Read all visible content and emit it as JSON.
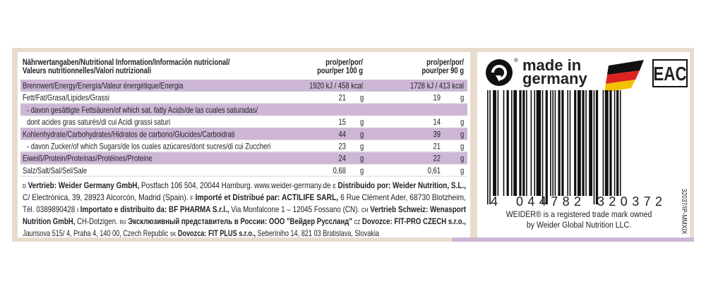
{
  "nutrition": {
    "header": {
      "title_lines": [
        "Nährwertangaben/Nutritional Information/Información nutricional/",
        "Valeurs nutritionnelles/Valori nutrizionali"
      ],
      "col1": [
        "pro/per/por/",
        "pour/per 100 g"
      ],
      "col2": [
        "pro/per/por/",
        "pour/per 90 g"
      ]
    },
    "rows": [
      {
        "label": "Brennwert/Energy/Energía/Valeur énergétique/Energia",
        "v1": "1920 kJ / 458 kcal",
        "v2": "1728 kJ / 413 kcal",
        "highlight": true
      },
      {
        "label": "Fett/Fat/Grasa/Lipides/Grassi",
        "v1": "21",
        "u1": "g",
        "v2": "19",
        "u2": "g",
        "highlight": false
      },
      {
        "label": "- davon gesättigte Fettsäuren/of which sat. fatty Acids/de las cuales saturadas/",
        "highlight": true,
        "indent": true
      },
      {
        "label": "dont acides gras saturés/di cui Acidi grassi saturi",
        "v1": "15",
        "u1": "g",
        "v2": "14",
        "u2": "g",
        "highlight": false,
        "indent": true
      },
      {
        "label": "Kohlenhydrate/Carbohydrates/Hidratos de carbono/Glucides/Carboidrati",
        "v1": "44",
        "u1": "g",
        "v2": "39",
        "u2": "g",
        "highlight": true
      },
      {
        "label": "- davon Zucker/of which Sugars/de los cuales azúcares/dont sucres/di cui Zuccheri",
        "v1": "23",
        "u1": "g",
        "v2": "21",
        "u2": "g",
        "highlight": false,
        "indent": true
      },
      {
        "label": "Eiweiß/Protein/Proteínas/Protéines/Proteine",
        "v1": "24",
        "u1": "g",
        "v2": "22",
        "u2": "g",
        "highlight": true
      },
      {
        "label": "Salz/Salt/Sal/Sel/Sale",
        "v1": "0,68",
        "u1": "g",
        "v2": "0,61",
        "u2": "g",
        "highlight": false
      }
    ]
  },
  "footer": {
    "lines": [
      [
        {
          "text": "D",
          "style": "icon"
        },
        {
          "text": " Vertrieb: Weider Germany GmbH,",
          "style": "bold"
        },
        {
          "text": " Postfach 106 504, 20044 Hamburg. www.weider-germany.de ",
          "style": "normal"
        },
        {
          "text": "E",
          "style": "icon"
        },
        {
          "text": " Distribuido por: Weider Nutrition, S.L.,",
          "style": "bold"
        }
      ],
      [
        {
          "text": "C/ Electrónica, 39, 28923 Alcorcón, Madrid (Spain). ",
          "style": "normal"
        },
        {
          "text": "F",
          "style": "icon"
        },
        {
          "text": " Importé et Distribué par: ACTILIFE SARL,",
          "style": "bold"
        },
        {
          "text": " 6 Rue Clément Ader, 68730 Blotzheim,",
          "style": "normal"
        }
      ],
      [
        {
          "text": "Tél. 0389890428 ",
          "style": "normal"
        },
        {
          "text": "I",
          "style": "icon"
        },
        {
          "text": " Importato e distribuito da: BF PHARMA S.r.l.,",
          "style": "bold"
        },
        {
          "text": " Via Monfalcone 1 – 12045 Fossano (CN). ",
          "style": "normal"
        },
        {
          "text": "CH",
          "style": "icon"
        },
        {
          "text": " Vertrieb Schweiz: Wenasport",
          "style": "bold"
        }
      ],
      [
        {
          "text": "Nutrition GmbH,",
          "style": "bold"
        },
        {
          "text": " CH-Dotzigen. ",
          "style": "normal"
        },
        {
          "text": "RU",
          "style": "icon"
        },
        {
          "text": " Эксклюзивный представитель в России: ООО \"Вейдер Руссланд\" ",
          "style": "bold"
        },
        {
          "text": "CZ",
          "style": "icon"
        },
        {
          "text": " Dovozce: FIT-PRO CZECH s.r.o.,",
          "style": "bold"
        }
      ],
      [
        {
          "text": "Jaurisova 515/ 4, Praha 4, 140 00, Czech Republic ",
          "style": "normal"
        },
        {
          "text": "SK",
          "style": "icon"
        },
        {
          "text": " Dovozca: FIT PLUS s.r.o.,",
          "style": "bold"
        },
        {
          "text": " Seberíniho 14, 821 03 Bratislava, Slovakia",
          "style": "normal"
        }
      ]
    ]
  },
  "brand": {
    "made_in": [
      "made in",
      "germany"
    ],
    "eac": "EAC",
    "barcode": {
      "first": "4",
      "left": "044782",
      "right": "320372"
    },
    "trademark": [
      "WEIDER® is a registered trade mark owned",
      "by Weider Global Nutrition LLC."
    ],
    "code": "32037/IP-MMXIX"
  }
}
